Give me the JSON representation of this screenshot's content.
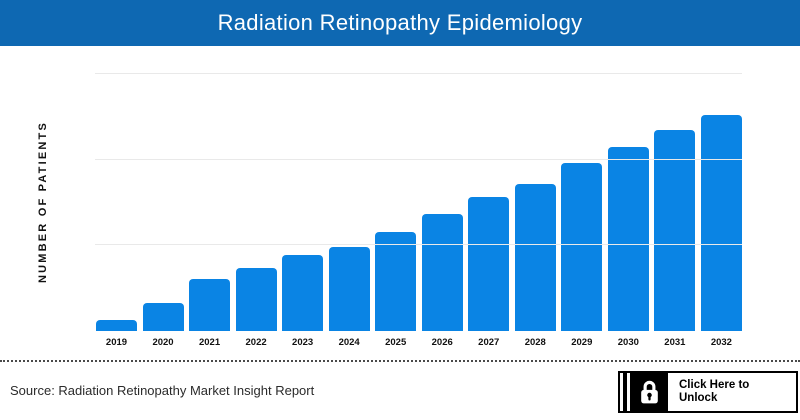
{
  "header": {
    "title": "Radiation Retinopathy Epidemiology"
  },
  "chart_data": {
    "type": "bar",
    "title": "Radiation Retinopathy Epidemiology",
    "categories": [
      "2019",
      "2020",
      "2021",
      "2022",
      "2023",
      "2024",
      "2025",
      "2026",
      "2027",
      "2028",
      "2029",
      "2030",
      "2031",
      "2032"
    ],
    "values": [
      5,
      13,
      24,
      29,
      35,
      39,
      46,
      54,
      62,
      68,
      78,
      85,
      93,
      100
    ],
    "values_note": "relative patient numbers estimated from bar heights; no numeric y-axis tick labels shown; 2025 = 46, tallest bar (2032) = 100",
    "xlabel": "",
    "ylabel": "NUMBER OF PATIENTS",
    "ylim": [
      0,
      119
    ],
    "gridlines": [
      39.7,
      79.3,
      119
    ],
    "grid": "horizontal-only",
    "legend": "none",
    "bar_color": "#0a84e4"
  },
  "colors": {
    "banner_blue": "#0e68b2",
    "bar_blue": "#0a84e4",
    "gridline_gray": "#e9e9e9"
  },
  "footer": {
    "source_text": "Source: Radiation Retinopathy Market Insight Report"
  },
  "unlock_button": {
    "icon": "lock-icon",
    "line1": "Click Here to",
    "line2": "Unlock"
  }
}
